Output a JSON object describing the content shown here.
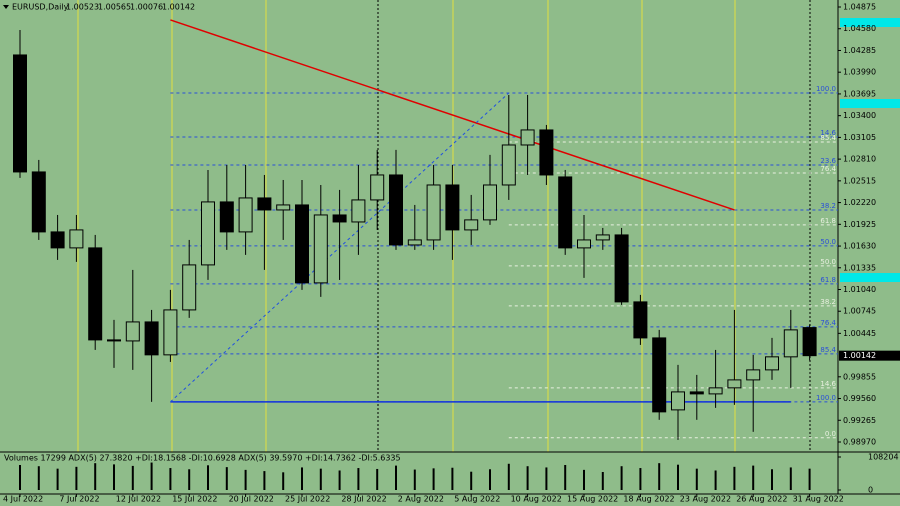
{
  "chart_data": {
    "type": "candlestick",
    "title": "EURUSD,Daily",
    "categories": [
      "4 Jul 2022",
      null,
      null,
      "7 Jul 2022",
      null,
      null,
      "12 Jul 2022",
      null,
      null,
      "15 Jul 2022",
      null,
      null,
      "20 Jul 2022",
      null,
      null,
      "25 Jul 2022",
      null,
      null,
      "28 Jul 2022",
      null,
      null,
      "2 Aug 2022",
      null,
      null,
      "5 Aug 2022",
      null,
      null,
      "10 Aug 2022",
      null,
      null,
      "15 Aug 2022",
      null,
      null,
      "18 Aug 2022",
      null,
      null,
      "23 Aug 2022",
      null,
      null,
      "26 Aug 2022",
      null,
      null,
      "31 Aug 2022"
    ],
    "open": [
      1.04224,
      1.02636,
      1.01822,
      1.01605,
      1.01605,
      1.00356,
      1.00342,
      1.006,
      1.00153,
      1.00763,
      1.01374,
      1.02229,
      1.01822,
      1.02283,
      1.0212,
      1.02188,
      1.0113,
      1.02052,
      1.01957,
      1.02256,
      1.02595,
      1.01645,
      1.01713,
      1.02459,
      1.01849,
      1.01985,
      1.02459,
      1.03002,
      1.03206,
      1.02568,
      1.01605,
      1.01713,
      1.01781,
      1.00872,
      1.00383,
      0.99406,
      0.9965,
      0.99623,
      0.99705,
      0.99813,
      0.99949,
      1.00126,
      1.00523
    ],
    "high": [
      1.04563,
      1.02799,
      1.02052,
      1.02052,
      1.01781,
      1.00628,
      1.01306,
      1.00763,
      1.01035,
      1.01713,
      1.02663,
      1.02731,
      1.02731,
      1.02595,
      1.02527,
      1.02527,
      1.02459,
      1.02392,
      1.02731,
      1.02935,
      1.02935,
      1.02188,
      1.02731,
      1.02731,
      1.02324,
      1.02867,
      1.03681,
      1.03681,
      1.03274,
      1.02663,
      1.02052,
      1.01876,
      1.01876,
      1.00967,
      1.00492,
      1.00017,
      0.99881,
      1.0022,
      1.00763,
      1.00153,
      1.00383,
      1.00763,
      1.00565
    ],
    "low": [
      1.02555,
      1.01713,
      1.01442,
      1.01415,
      1.0022,
      0.99976,
      0.99949,
      0.99515,
      1.00057,
      1.00655,
      1.0117,
      1.01578,
      1.0151,
      1.01306,
      1.01713,
      1.01035,
      1.0094,
      1.0117,
      1.0151,
      1.01849,
      1.01578,
      1.01578,
      1.01578,
      1.01442,
      1.01645,
      1.01917,
      1.02256,
      1.02595,
      1.02459,
      1.0151,
      1.01198,
      1.01578,
      1.00831,
      1.00288,
      0.99271,
      0.98999,
      0.99271,
      0.99433,
      0.99474,
      0.99108,
      0.99813,
      0.99705,
      1.00076
    ],
    "close": [
      1.02636,
      1.01822,
      1.01605,
      1.01849,
      1.00356,
      1.00342,
      1.006,
      1.00153,
      1.00763,
      1.01374,
      1.02229,
      1.01822,
      1.02283,
      1.0212,
      1.02188,
      1.0113,
      1.02052,
      1.01957,
      1.02256,
      1.02595,
      1.01645,
      1.01713,
      1.02459,
      1.01849,
      1.01985,
      1.02459,
      1.03002,
      1.03206,
      1.02595,
      1.01605,
      1.01713,
      1.01781,
      1.00872,
      1.00383,
      0.99379,
      0.9965,
      0.99623,
      0.99705,
      0.99813,
      0.99949,
      1.00126,
      1.00492,
      1.00142
    ],
    "ylim": [
      0.9897,
      1.04875
    ],
    "yticks": [
      1.04875,
      {
        "value": 1.0458,
        "label": "1.04580"
      },
      1.04285,
      {
        "value": 1.0399,
        "label": "1.03990"
      },
      1.03695,
      {
        "value": 1.034,
        "label": "1.03400"
      },
      1.03105,
      {
        "value": 1.0281,
        "label": "1.02810"
      },
      1.02515,
      {
        "value": 1.0222,
        "label": "1.02220"
      },
      1.01925,
      {
        "value": 1.0163,
        "label": "1.01630"
      },
      1.01335,
      {
        "value": 1.0104,
        "label": "1.01040"
      },
      1.00745,
      1.00445,
      0.99855,
      {
        "value": 0.9956,
        "label": "0.99560"
      },
      0.99265,
      {
        "value": 0.9897,
        "label": "0.98970"
      }
    ],
    "lines": [
      {
        "color": "#e00000",
        "x": [
          8,
          38
        ],
        "y": [
          1.04699,
          1.0212
        ],
        "dash": false
      },
      {
        "color": "#1030e0",
        "x": [
          8,
          41
        ],
        "y": [
          0.99515,
          0.99515
        ],
        "dash": false
      },
      {
        "color": "#2050e0",
        "x": [
          8,
          26
        ],
        "y": [
          0.99515,
          1.03708
        ],
        "dash": true
      }
    ],
    "fibonacci": [
      {
        "color": "#2a4fd8",
        "start": 8,
        "levels": [
          {
            "label": "100.0",
            "price": 1.03708
          },
          {
            "label": "14.6",
            "price": 1.03111
          },
          {
            "label": "23.6",
            "price": 1.02731
          },
          {
            "label": "38.2",
            "price": 1.0212
          },
          {
            "label": "50.0",
            "price": 1.01632
          },
          {
            "label": "61.8",
            "price": 1.01116
          },
          {
            "label": "76.4",
            "price": 1.00533
          },
          {
            "label": "85.4",
            "price": 1.00166
          },
          {
            "label": "100.0",
            "price": 0.99515
          }
        ]
      },
      {
        "color": "#e8f0e0",
        "start": 26,
        "levels": [
          {
            "label": "85.4",
            "price": 1.03043
          },
          {
            "label": "76.4",
            "price": 1.02622
          },
          {
            "label": "61.8",
            "price": 1.01917
          },
          {
            "label": "50.0",
            "price": 1.0136
          },
          {
            "label": "38.2",
            "price": 1.00818
          },
          {
            "label": "14.6",
            "price": 0.99705
          },
          {
            "label": "0.0",
            "price": 0.99027
          }
        ]
      }
    ],
    "volume": {
      "label": "Volumes 17299  ADX(5) 27.3820 +DI:18.1568 -DI:10.6928  ADX(5) 39.5970 +DI:14.7362 -DI:5.6335",
      "values": [
        82000,
        78000,
        70000,
        76000,
        88000,
        84000,
        79000,
        90000,
        72000,
        68000,
        81000,
        75000,
        66000,
        62000,
        58000,
        74000,
        70000,
        64000,
        72000,
        69000,
        80000,
        67000,
        71000,
        73000,
        60000,
        68000,
        86000,
        78000,
        74000,
        82000,
        66000,
        59000,
        78000,
        72000,
        88000,
        83000,
        70000,
        64000,
        76000,
        80000,
        68000,
        74000,
        70000
      ],
      "ylim": [
        0,
        108204
      ],
      "yticks": [
        0,
        108204
      ]
    }
  }
}
